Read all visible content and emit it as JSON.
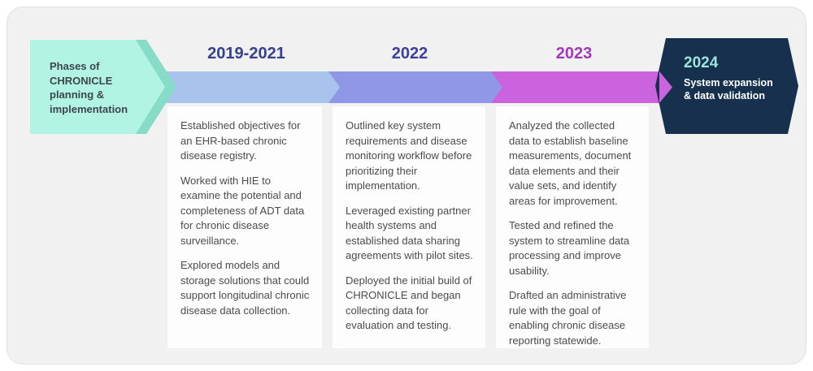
{
  "colors": {
    "frame_bg": "#f2f1f2",
    "frame_border": "#e2e1e2",
    "mint": "#b2f4e3",
    "mint_shadow": "#86dcc7",
    "seg1": "#a9c4ec",
    "seg2": "#9197e7",
    "seg3": "#cb63de",
    "year1": "#35418f",
    "year2": "#3c3f9e",
    "year3": "#a139b8",
    "navy": "#16304e",
    "teal_2024": "#9ce5da",
    "lead_text": "#3d464d",
    "body_text": "#4b4b4b",
    "card_bg": "#fdfdfe"
  },
  "lead": {
    "label": "Phases of\nCHRONICLE\nplanning &\nimplementation"
  },
  "phases": [
    {
      "year": "2019-2021",
      "paragraphs": [
        "Established objectives for an EHR-based chronic disease registry.",
        "Worked with HIE to examine the potential and completeness of ADT data for chronic disease surveillance.",
        "Explored models and storage solutions that could support longitudinal chronic disease data collection."
      ]
    },
    {
      "year": "2022",
      "paragraphs": [
        "Outlined key system requirements and disease monitoring workflow before prioritizing their implementation.",
        "Leveraged existing partner health systems and established data sharing agreements with pilot sites.",
        "Deployed the initial build of CHRONICLE and began collecting data for evaluation and testing."
      ]
    },
    {
      "year": "2023",
      "paragraphs": [
        "Analyzed the collected data to establish baseline measurements, document data elements and their value sets, and identify areas for improvement.",
        "Tested and refined the system to streamline data processing and improve usability.",
        "Drafted an administrative rule with the goal of enabling chronic disease reporting statewide."
      ]
    }
  ],
  "final_phase": {
    "year": "2024",
    "subtitle": "System expansion\n& data validation"
  }
}
